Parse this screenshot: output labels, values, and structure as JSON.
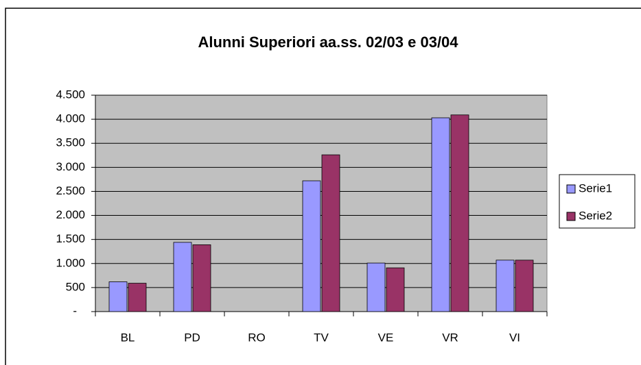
{
  "chart_data": {
    "type": "bar",
    "title": "Alunni Superiori aa.ss. 02/03 e 03/04",
    "categories": [
      "BL",
      "PD",
      "RO",
      "TV",
      "VE",
      "VR",
      "VI"
    ],
    "series": [
      {
        "name": "Serie1",
        "color": "#9999ff",
        "values": [
          620,
          1440,
          0,
          2720,
          1010,
          4030,
          1070
        ]
      },
      {
        "name": "Serie2",
        "color": "#993366",
        "values": [
          590,
          1390,
          0,
          3260,
          910,
          4090,
          1070
        ]
      }
    ],
    "ylim": [
      0,
      4500
    ],
    "yticks": [
      {
        "value": 0,
        "label": "-"
      },
      500,
      {
        "value": 1000,
        "label": "1.000"
      },
      {
        "value": 1500,
        "label": "1.500"
      },
      {
        "value": 2000,
        "label": "2.000"
      },
      {
        "value": 2500,
        "label": "2.500"
      },
      {
        "value": 3000,
        "label": "3.000"
      },
      {
        "value": 3500,
        "label": "3.500"
      },
      {
        "value": 4000,
        "label": "4.000"
      },
      {
        "value": 4500,
        "label": "4.500"
      }
    ],
    "grid": true,
    "legend": "right",
    "plot_background": "#c0c0c0"
  }
}
